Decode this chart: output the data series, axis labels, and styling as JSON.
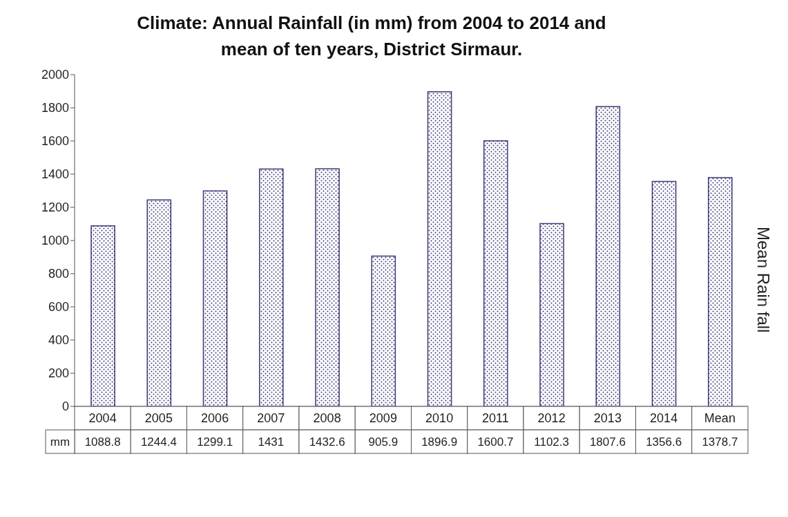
{
  "chart_data": {
    "type": "bar",
    "title": "Climate: Annual Rainfall (in mm) from 2004 to 2014 and mean of ten years, District Sirmaur.",
    "categories": [
      "2004",
      "2005",
      "2006",
      "2007",
      "2008",
      "2009",
      "2010",
      "2011",
      "2012",
      "2013",
      "2014",
      "Mean"
    ],
    "series": [
      {
        "name": "mm",
        "color": "#3a3a7a",
        "values": [
          1088.8,
          1244.4,
          1299.1,
          1431,
          1432.6,
          905.9,
          1896.9,
          1600.7,
          1102.3,
          1807.6,
          1356.6,
          1378.7
        ]
      }
    ],
    "ylim": [
      0,
      2000
    ],
    "yticks": [
      0,
      200,
      400,
      600,
      800,
      1000,
      1200,
      1400,
      1600,
      1800,
      2000
    ],
    "grid": false,
    "data_labels": true,
    "annotations": [
      "Mean Rain fall"
    ]
  }
}
